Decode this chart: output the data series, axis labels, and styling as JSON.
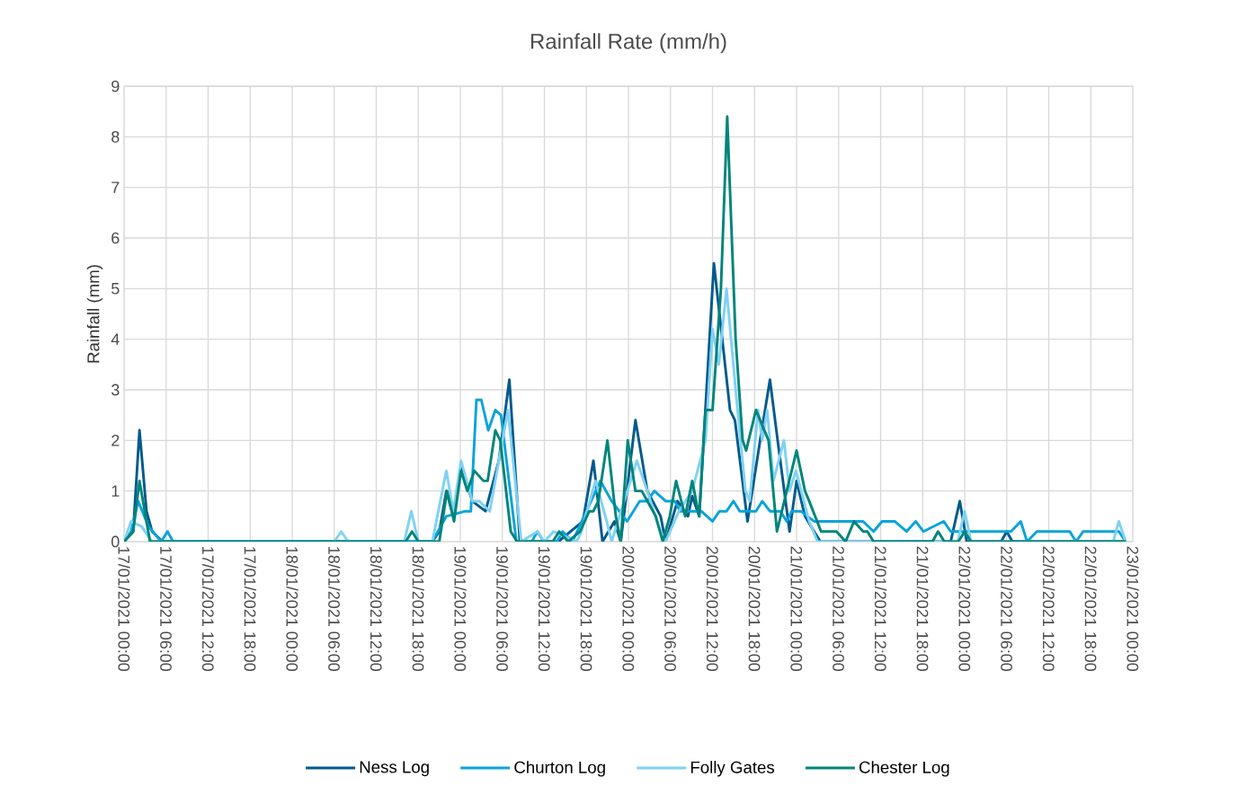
{
  "chart_data": {
    "type": "line",
    "title": "Rainfall Rate (mm/h)",
    "ylabel": "Rainfall (mm)",
    "xlim": [
      "2021-01-17T00:00",
      "2021-01-23T00:00"
    ],
    "ylim": [
      0,
      9
    ],
    "yticks": [
      0,
      1,
      2,
      3,
      4,
      5,
      6,
      7,
      8,
      9
    ],
    "xticks": [
      {
        "value": "2021-01-17T00:00",
        "label": "17/01/2021 00:00"
      },
      {
        "value": "2021-01-17T06:00",
        "label": "17/01/2021 06:00"
      },
      {
        "value": "2021-01-17T12:00",
        "label": "17/01/2021 12:00"
      },
      {
        "value": "2021-01-17T18:00",
        "label": "17/01/2021 18:00"
      },
      {
        "value": "2021-01-18T00:00",
        "label": "18/01/2021 00:00"
      },
      {
        "value": "2021-01-18T06:00",
        "label": "18/01/2021 06:00"
      },
      {
        "value": "2021-01-18T12:00",
        "label": "18/01/2021 12:00"
      },
      {
        "value": "2021-01-18T18:00",
        "label": "18/01/2021 18:00"
      },
      {
        "value": "2021-01-19T00:00",
        "label": "19/01/2021 00:00"
      },
      {
        "value": "2021-01-19T06:00",
        "label": "19/01/2021 06:00"
      },
      {
        "value": "2021-01-19T12:00",
        "label": "19/01/2021 12:00"
      },
      {
        "value": "2021-01-19T18:00",
        "label": "19/01/2021 18:00"
      },
      {
        "value": "2021-01-20T00:00",
        "label": "20/01/2021 00:00"
      },
      {
        "value": "2021-01-20T06:00",
        "label": "20/01/2021 06:00"
      },
      {
        "value": "2021-01-20T12:00",
        "label": "20/01/2021 12:00"
      },
      {
        "value": "2021-01-20T18:00",
        "label": "20/01/2021 18:00"
      },
      {
        "value": "2021-01-21T00:00",
        "label": "21/01/2021 00:00"
      },
      {
        "value": "2021-01-21T06:00",
        "label": "21/01/2021 06:00"
      },
      {
        "value": "2021-01-21T12:00",
        "label": "21/01/2021 12:00"
      },
      {
        "value": "2021-01-21T18:00",
        "label": "21/01/2021 18:00"
      },
      {
        "value": "2021-01-22T00:00",
        "label": "22/01/2021 00:00"
      },
      {
        "value": "2021-01-22T06:00",
        "label": "22/01/2021 06:00"
      },
      {
        "value": "2021-01-22T12:00",
        "label": "22/01/2021 12:00"
      },
      {
        "value": "2021-01-22T18:00",
        "label": "22/01/2021 18:00"
      },
      {
        "value": "2021-01-23T00:00",
        "label": "23/01/2021 00:00"
      }
    ],
    "grid": true,
    "legend": "bottom",
    "series": [
      {
        "name": "Ness Log",
        "color": "#005a8c",
        "x": [
          "2021-01-17T00:00",
          "2021-01-17T01:18",
          "2021-01-17T02:12",
          "2021-01-17T03:12",
          "2021-01-17T04:00",
          "2021-01-17T05:30",
          "2021-01-18T20:00",
          "2021-01-18T21:00",
          "2021-01-18T22:00",
          "2021-01-18T23:00",
          "2021-01-19T00:06",
          "2021-01-19T01:42",
          "2021-01-19T03:36",
          "2021-01-19T05:30",
          "2021-01-19T07:00",
          "2021-01-19T08:30",
          "2021-01-19T14:00",
          "2021-01-19T17:30",
          "2021-01-19T19:00",
          "2021-01-19T20:18",
          "2021-01-19T22:00",
          "2021-01-19T22:54",
          "2021-01-20T01:00",
          "2021-01-20T02:42",
          "2021-01-20T04:36",
          "2021-01-20T05:18",
          "2021-01-20T07:00",
          "2021-01-20T08:30",
          "2021-01-20T09:06",
          "2021-01-20T10:06",
          "2021-01-20T12:12",
          "2021-01-20T14:30",
          "2021-01-20T15:12",
          "2021-01-20T17:00",
          "2021-01-20T18:48",
          "2021-01-20T20:12",
          "2021-01-20T21:18",
          "2021-01-20T23:00",
          "2021-01-21T00:00",
          "2021-01-21T01:12",
          "2021-01-21T02:30",
          "2021-01-21T03:24",
          "2021-01-21T22:00",
          "2021-01-21T23:18",
          "2021-01-22T00:18",
          "2021-01-22T05:12",
          "2021-01-22T06:00",
          "2021-01-22T06:48",
          "2021-01-22T23:00"
        ],
        "values": [
          0,
          0.2,
          2.2,
          0.6,
          0.2,
          0,
          0,
          0.2,
          1.0,
          0.5,
          1.5,
          0.8,
          0.6,
          1.6,
          3.2,
          0,
          0,
          0.4,
          1.6,
          0,
          0.4,
          0,
          2.4,
          1.0,
          0.5,
          0,
          0.8,
          0.5,
          0.9,
          0.5,
          5.5,
          2.6,
          2.4,
          0.4,
          2.0,
          3.2,
          2.0,
          0.2,
          1.2,
          0.5,
          0.2,
          0,
          0,
          0.8,
          0,
          0,
          0.2,
          0,
          0
        ]
      },
      {
        "name": "Churton Log",
        "color": "#0aa3db",
        "x": [
          "2021-01-17T00:00",
          "2021-01-17T01:00",
          "2021-01-17T02:00",
          "2021-01-17T03:30",
          "2021-01-17T05:18",
          "2021-01-17T06:12",
          "2021-01-17T07:00",
          "2021-01-18T20:00",
          "2021-01-18T22:00",
          "2021-01-19T00:42",
          "2021-01-19T01:30",
          "2021-01-19T02:18",
          "2021-01-19T03:00",
          "2021-01-19T04:00",
          "2021-01-19T05:00",
          "2021-01-19T05:48",
          "2021-01-19T08:00",
          "2021-01-19T10:12",
          "2021-01-19T11:00",
          "2021-01-19T11:54",
          "2021-01-19T13:48",
          "2021-01-19T14:36",
          "2021-01-19T16:00",
          "2021-01-19T20:00",
          "2021-01-19T21:36",
          "2021-01-19T23:48",
          "2021-01-20T01:36",
          "2021-01-20T02:42",
          "2021-01-20T03:42",
          "2021-01-20T05:18",
          "2021-01-20T06:36",
          "2021-01-20T07:24",
          "2021-01-20T10:24",
          "2021-01-20T12:00",
          "2021-01-20T13:00",
          "2021-01-20T14:00",
          "2021-01-20T15:00",
          "2021-01-20T15:54",
          "2021-01-20T18:12",
          "2021-01-20T19:06",
          "2021-01-20T20:12",
          "2021-01-20T21:42",
          "2021-01-20T22:36",
          "2021-01-20T23:18",
          "2021-01-21T00:36",
          "2021-01-21T02:30",
          "2021-01-21T09:30",
          "2021-01-21T11:00",
          "2021-01-21T12:12",
          "2021-01-21T14:00",
          "2021-01-21T15:42",
          "2021-01-21T17:00",
          "2021-01-21T18:06",
          "2021-01-21T21:00",
          "2021-01-21T22:00",
          "2021-01-22T00:00",
          "2021-01-22T06:36",
          "2021-01-22T08:00",
          "2021-01-22T08:54",
          "2021-01-22T10:18",
          "2021-01-22T15:00",
          "2021-01-22T15:54",
          "2021-01-22T16:54",
          "2021-01-22T22:00",
          "2021-01-22T23:00"
        ],
        "values": [
          0,
          0.2,
          0.8,
          0.3,
          0,
          0.2,
          0,
          0,
          0.5,
          0.6,
          0.6,
          2.8,
          2.8,
          2.2,
          2.6,
          2.5,
          0,
          0,
          0.2,
          0,
          0,
          0.2,
          0,
          1.2,
          0.8,
          0.4,
          0.8,
          0.8,
          1.0,
          0.8,
          0.8,
          0.6,
          0.6,
          0.4,
          0.6,
          0.6,
          0.8,
          0.6,
          0.6,
          0.8,
          0.6,
          0.6,
          0.4,
          0.6,
          0.6,
          0.4,
          0.4,
          0.2,
          0.4,
          0.4,
          0.2,
          0.4,
          0.2,
          0.4,
          0.2,
          0.2,
          0.2,
          0.4,
          0,
          0.2,
          0.2,
          0,
          0.2,
          0.2,
          0
        ]
      },
      {
        "name": "Folly Gates",
        "color": "#7fd2f3",
        "x": [
          "2021-01-17T00:00",
          "2021-01-17T01:00",
          "2021-01-17T02:30",
          "2021-01-17T04:00",
          "2021-01-18T06:00",
          "2021-01-18T07:00",
          "2021-01-18T08:00",
          "2021-01-18T16:00",
          "2021-01-18T17:00",
          "2021-01-18T18:00",
          "2021-01-18T20:00",
          "2021-01-18T22:00",
          "2021-01-18T23:00",
          "2021-01-19T00:06",
          "2021-01-19T01:42",
          "2021-01-19T02:42",
          "2021-01-19T04:12",
          "2021-01-19T06:48",
          "2021-01-19T08:42",
          "2021-01-19T11:00",
          "2021-01-19T12:00",
          "2021-01-19T13:18",
          "2021-01-19T16:36",
          "2021-01-19T17:18",
          "2021-01-19T19:18",
          "2021-01-19T20:54",
          "2021-01-19T21:36",
          "2021-01-20T01:12",
          "2021-01-20T02:42",
          "2021-01-20T04:18",
          "2021-01-20T05:18",
          "2021-01-20T07:12",
          "2021-01-20T09:06",
          "2021-01-20T11:00",
          "2021-01-20T12:00",
          "2021-01-20T12:54",
          "2021-01-20T14:00",
          "2021-01-20T15:18",
          "2021-01-20T16:42",
          "2021-01-20T17:18",
          "2021-01-20T18:30",
          "2021-01-20T19:06",
          "2021-01-20T19:48",
          "2021-01-20T20:42",
          "2021-01-20T22:12",
          "2021-01-20T23:00",
          "2021-01-20T23:54",
          "2021-01-21T01:48",
          "2021-01-21T03:00",
          "2021-01-21T23:00",
          "2021-01-22T00:00",
          "2021-01-22T00:54",
          "2021-01-22T21:12",
          "2021-01-22T22:00",
          "2021-01-22T23:00"
        ],
        "values": [
          0,
          0.4,
          0.3,
          0,
          0,
          0.2,
          0,
          0,
          0.6,
          0,
          0,
          1.4,
          0.6,
          1.6,
          0.8,
          0.8,
          0.6,
          2.6,
          0,
          0.2,
          0,
          0.2,
          0,
          0.2,
          1.2,
          0.4,
          0,
          1.6,
          1.0,
          0.3,
          0,
          0.6,
          1.0,
          2.0,
          4.2,
          3.5,
          5.0,
          3.0,
          1.0,
          0.8,
          2.6,
          2.0,
          2.6,
          1.2,
          2.0,
          1.0,
          1.4,
          0.4,
          0,
          0,
          0.6,
          0,
          0,
          0.4,
          0
        ]
      },
      {
        "name": "Chester Log",
        "color": "#00857b",
        "x": [
          "2021-01-17T00:00",
          "2021-01-17T01:18",
          "2021-01-17T02:12",
          "2021-01-17T03:42",
          "2021-01-18T16:12",
          "2021-01-18T17:06",
          "2021-01-18T18:00",
          "2021-01-18T21:00",
          "2021-01-18T22:06",
          "2021-01-18T23:06",
          "2021-01-19T00:06",
          "2021-01-19T01:00",
          "2021-01-19T02:00",
          "2021-01-19T03:18",
          "2021-01-19T03:54",
          "2021-01-19T05:00",
          "2021-01-19T05:42",
          "2021-01-19T07:12",
          "2021-01-19T08:06",
          "2021-01-19T13:12",
          "2021-01-19T14:06",
          "2021-01-19T15:24",
          "2021-01-19T17:06",
          "2021-01-19T18:24",
          "2021-01-19T19:00",
          "2021-01-19T19:42",
          "2021-01-19T21:00",
          "2021-01-19T22:12",
          "2021-01-19T22:54",
          "2021-01-19T23:54",
          "2021-01-20T01:00",
          "2021-01-20T01:54",
          "2021-01-20T03:54",
          "2021-01-20T04:54",
          "2021-01-20T05:54",
          "2021-01-20T06:48",
          "2021-01-20T08:06",
          "2021-01-20T09:06",
          "2021-01-20T10:06",
          "2021-01-20T11:00",
          "2021-01-20T12:00",
          "2021-01-20T13:12",
          "2021-01-20T14:06",
          "2021-01-20T15:18",
          "2021-01-20T16:18",
          "2021-01-20T16:48",
          "2021-01-20T18:12",
          "2021-01-20T20:00",
          "2021-01-20T21:12",
          "2021-01-20T22:36",
          "2021-01-21T00:00",
          "2021-01-21T01:12",
          "2021-01-21T01:48",
          "2021-01-21T03:30",
          "2021-01-21T05:42",
          "2021-01-21T07:00",
          "2021-01-21T08:12",
          "2021-01-21T09:30",
          "2021-01-21T10:06",
          "2021-01-21T11:00",
          "2021-01-21T19:24",
          "2021-01-21T20:12",
          "2021-01-21T21:06",
          "2021-01-21T23:06",
          "2021-01-22T00:00",
          "2021-01-22T00:54",
          "2021-01-22T23:00"
        ],
        "values": [
          0,
          0.2,
          1.2,
          0,
          0,
          0.2,
          0,
          0,
          1.0,
          0.4,
          1.4,
          1.0,
          1.4,
          1.2,
          1.2,
          2.2,
          2.0,
          0.2,
          0,
          0,
          0.2,
          0,
          0.2,
          0.6,
          0.6,
          0.8,
          2.0,
          0.5,
          0,
          2.0,
          1.0,
          1.0,
          0.5,
          0,
          0.5,
          1.2,
          0.5,
          1.2,
          0.5,
          2.6,
          2.6,
          5.0,
          8.4,
          4.0,
          2.0,
          1.8,
          2.6,
          2.0,
          0.2,
          1.0,
          1.8,
          1.0,
          0.8,
          0.2,
          0.2,
          0,
          0.4,
          0.2,
          0.2,
          0,
          0,
          0.2,
          0,
          0,
          0.2,
          0,
          0
        ]
      }
    ]
  }
}
